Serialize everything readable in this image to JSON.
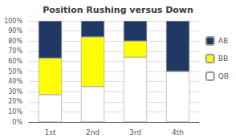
{
  "chart_data": {
    "type": "bar",
    "stacked": true,
    "title": "Position Rushing versus Down",
    "categories": [
      "1st",
      "2nd",
      "3rd",
      "4th"
    ],
    "series": [
      {
        "name": "QB",
        "color": "#ffffff",
        "values": [
          27,
          35,
          64,
          50
        ]
      },
      {
        "name": "BB",
        "color": "#ffff00",
        "values": [
          36,
          49,
          16,
          0
        ]
      },
      {
        "name": "AB",
        "color": "#1f3864",
        "values": [
          37,
          16,
          20,
          50
        ]
      }
    ],
    "ylim": [
      0,
      100
    ],
    "yticks": [
      {
        "value": 0,
        "label": "0%"
      },
      {
        "value": 10,
        "label": "10%"
      },
      {
        "value": 20,
        "label": "20%"
      },
      {
        "value": 30,
        "label": "30%"
      },
      {
        "value": 40,
        "label": "40%"
      },
      {
        "value": 50,
        "label": "50%"
      },
      {
        "value": 60,
        "label": "60%"
      },
      {
        "value": 70,
        "label": "70%"
      },
      {
        "value": 80,
        "label": "80%"
      },
      {
        "value": 90,
        "label": "90%"
      },
      {
        "value": 100,
        "label": "100%"
      }
    ],
    "grid": true,
    "legend": "right"
  }
}
